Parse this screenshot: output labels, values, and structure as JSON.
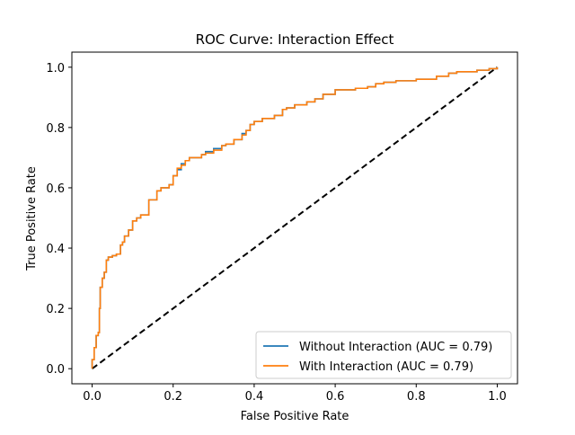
{
  "chart_data": {
    "type": "line",
    "title": "ROC Curve: Interaction Effect",
    "xlabel": "False Positive Rate",
    "ylabel": "True Positive Rate",
    "xlim": [
      -0.05,
      1.05
    ],
    "ylim": [
      -0.05,
      1.05
    ],
    "xticks": [
      "0.0",
      "0.2",
      "0.4",
      "0.6",
      "0.8",
      "1.0"
    ],
    "yticks": [
      "0.0",
      "0.2",
      "0.4",
      "0.6",
      "0.8",
      "1.0"
    ],
    "grid": false,
    "legend_position": "lower-right",
    "series": [
      {
        "name": "Without Interaction (AUC = 0.79)",
        "color": "#1f77b4",
        "x": [
          0.0,
          0.0,
          0.005,
          0.01,
          0.015,
          0.018,
          0.02,
          0.025,
          0.03,
          0.035,
          0.04,
          0.05,
          0.06,
          0.07,
          0.075,
          0.08,
          0.09,
          0.1,
          0.11,
          0.12,
          0.14,
          0.16,
          0.17,
          0.19,
          0.2,
          0.21,
          0.22,
          0.23,
          0.24,
          0.25,
          0.27,
          0.28,
          0.3,
          0.32,
          0.33,
          0.35,
          0.37,
          0.38,
          0.39,
          0.4,
          0.42,
          0.45,
          0.47,
          0.48,
          0.5,
          0.53,
          0.55,
          0.57,
          0.6,
          0.65,
          0.68,
          0.7,
          0.72,
          0.75,
          0.8,
          0.85,
          0.88,
          0.9,
          0.95,
          0.98,
          1.0
        ],
        "y": [
          0.0,
          0.03,
          0.07,
          0.11,
          0.12,
          0.2,
          0.27,
          0.3,
          0.32,
          0.36,
          0.37,
          0.375,
          0.38,
          0.41,
          0.42,
          0.44,
          0.46,
          0.49,
          0.5,
          0.51,
          0.56,
          0.59,
          0.6,
          0.61,
          0.64,
          0.66,
          0.68,
          0.69,
          0.7,
          0.7,
          0.71,
          0.72,
          0.73,
          0.74,
          0.745,
          0.76,
          0.78,
          0.79,
          0.81,
          0.82,
          0.83,
          0.84,
          0.86,
          0.865,
          0.875,
          0.885,
          0.895,
          0.91,
          0.925,
          0.93,
          0.935,
          0.945,
          0.95,
          0.955,
          0.96,
          0.97,
          0.98,
          0.985,
          0.99,
          0.995,
          1.0
        ]
      },
      {
        "name": "With Interaction (AUC = 0.79)",
        "color": "#ff7f0e",
        "x": [
          0.0,
          0.0,
          0.005,
          0.01,
          0.015,
          0.018,
          0.02,
          0.025,
          0.03,
          0.035,
          0.04,
          0.05,
          0.06,
          0.07,
          0.075,
          0.08,
          0.09,
          0.1,
          0.11,
          0.12,
          0.14,
          0.16,
          0.17,
          0.19,
          0.2,
          0.21,
          0.22,
          0.23,
          0.24,
          0.25,
          0.27,
          0.28,
          0.3,
          0.32,
          0.33,
          0.35,
          0.37,
          0.38,
          0.39,
          0.4,
          0.42,
          0.45,
          0.47,
          0.48,
          0.5,
          0.53,
          0.55,
          0.57,
          0.6,
          0.65,
          0.68,
          0.7,
          0.72,
          0.75,
          0.8,
          0.85,
          0.88,
          0.9,
          0.95,
          0.98,
          1.0
        ],
        "y": [
          0.0,
          0.03,
          0.07,
          0.11,
          0.12,
          0.2,
          0.27,
          0.3,
          0.32,
          0.36,
          0.37,
          0.375,
          0.38,
          0.41,
          0.42,
          0.44,
          0.46,
          0.49,
          0.5,
          0.51,
          0.56,
          0.59,
          0.6,
          0.61,
          0.64,
          0.665,
          0.675,
          0.69,
          0.7,
          0.7,
          0.71,
          0.715,
          0.725,
          0.74,
          0.745,
          0.76,
          0.775,
          0.79,
          0.81,
          0.82,
          0.83,
          0.84,
          0.86,
          0.865,
          0.875,
          0.885,
          0.895,
          0.91,
          0.925,
          0.93,
          0.935,
          0.945,
          0.95,
          0.955,
          0.96,
          0.97,
          0.98,
          0.985,
          0.99,
          0.995,
          1.0
        ]
      }
    ],
    "reference_line": {
      "x": [
        0,
        1
      ],
      "y": [
        0,
        1
      ],
      "color": "#000000",
      "style": "dashed"
    }
  }
}
